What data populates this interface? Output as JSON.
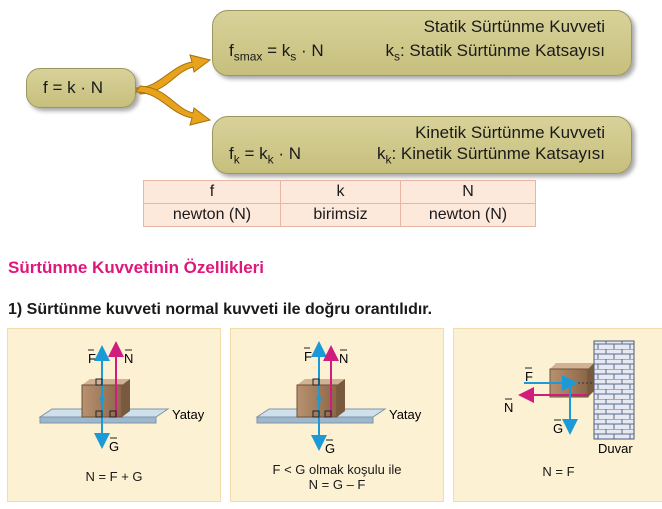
{
  "formula": {
    "main": "f = k · N"
  },
  "static": {
    "title": "Statik Sürtünme Kuvveti",
    "f_sym": "f",
    "f_sub": "smax",
    "f_mid": " = k",
    "f_sub2": "s",
    "f_end": " · N",
    "k_sym": "k",
    "k_sub": "s",
    "k_desc": ": Statik Sürtünme Katsayısı"
  },
  "kinetic": {
    "title": "Kinetik Sürtünme Kuvveti",
    "f_sym": "f",
    "f_sub": "k",
    "f_mid": " = k",
    "f_sub2": "k",
    "f_end": " · N",
    "k_sym": "k",
    "k_sub": "k",
    "k_desc": ": Kinetik Sürtünme Katsayısı"
  },
  "units_table": {
    "headers": [
      "f",
      "k",
      "N"
    ],
    "units": [
      "newton (N)",
      "birimsiz",
      "newton (N)"
    ]
  },
  "section_title": "Sürtünme Kuvvetinin Özellikleri",
  "item_title": "1) Sürtünme kuvveti normal kuvveti ile doğru orantılıdır.",
  "panels": [
    {
      "force1": "F",
      "force2": "N",
      "weight": "G",
      "surface": "Yatay",
      "caption1": "N = F + G",
      "caption2": ""
    },
    {
      "force1": "F",
      "force2": "N",
      "weight": "G",
      "surface": "Yatay",
      "caption1": "F < G olmak koşulu ile",
      "caption2": "N = G – F"
    },
    {
      "force1": "F",
      "force2": "N",
      "weight": "G",
      "wall": "Duvar",
      "caption1": "N = F",
      "caption2": ""
    }
  ],
  "colors": {
    "blue_arrow": "#1a9ad6",
    "magenta_arrow": "#d01d7d",
    "title_pink": "#e0177b",
    "arrow_orange": "#e8a31c"
  }
}
